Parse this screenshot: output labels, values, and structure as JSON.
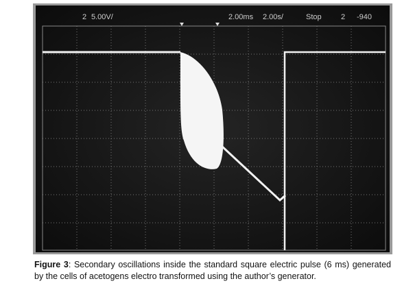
{
  "figure": {
    "screen_labels": [
      "2",
      "5.00V/",
      "2.00ms",
      "2.00s/",
      "Stop",
      "2",
      "-940"
    ],
    "caption": {
      "label": "Figure 3",
      "text": ": Secondary oscillations inside the standard square electric pulse (6 ms) generated by the cells of acetogens electro transformed using the author’s generator."
    }
  }
}
